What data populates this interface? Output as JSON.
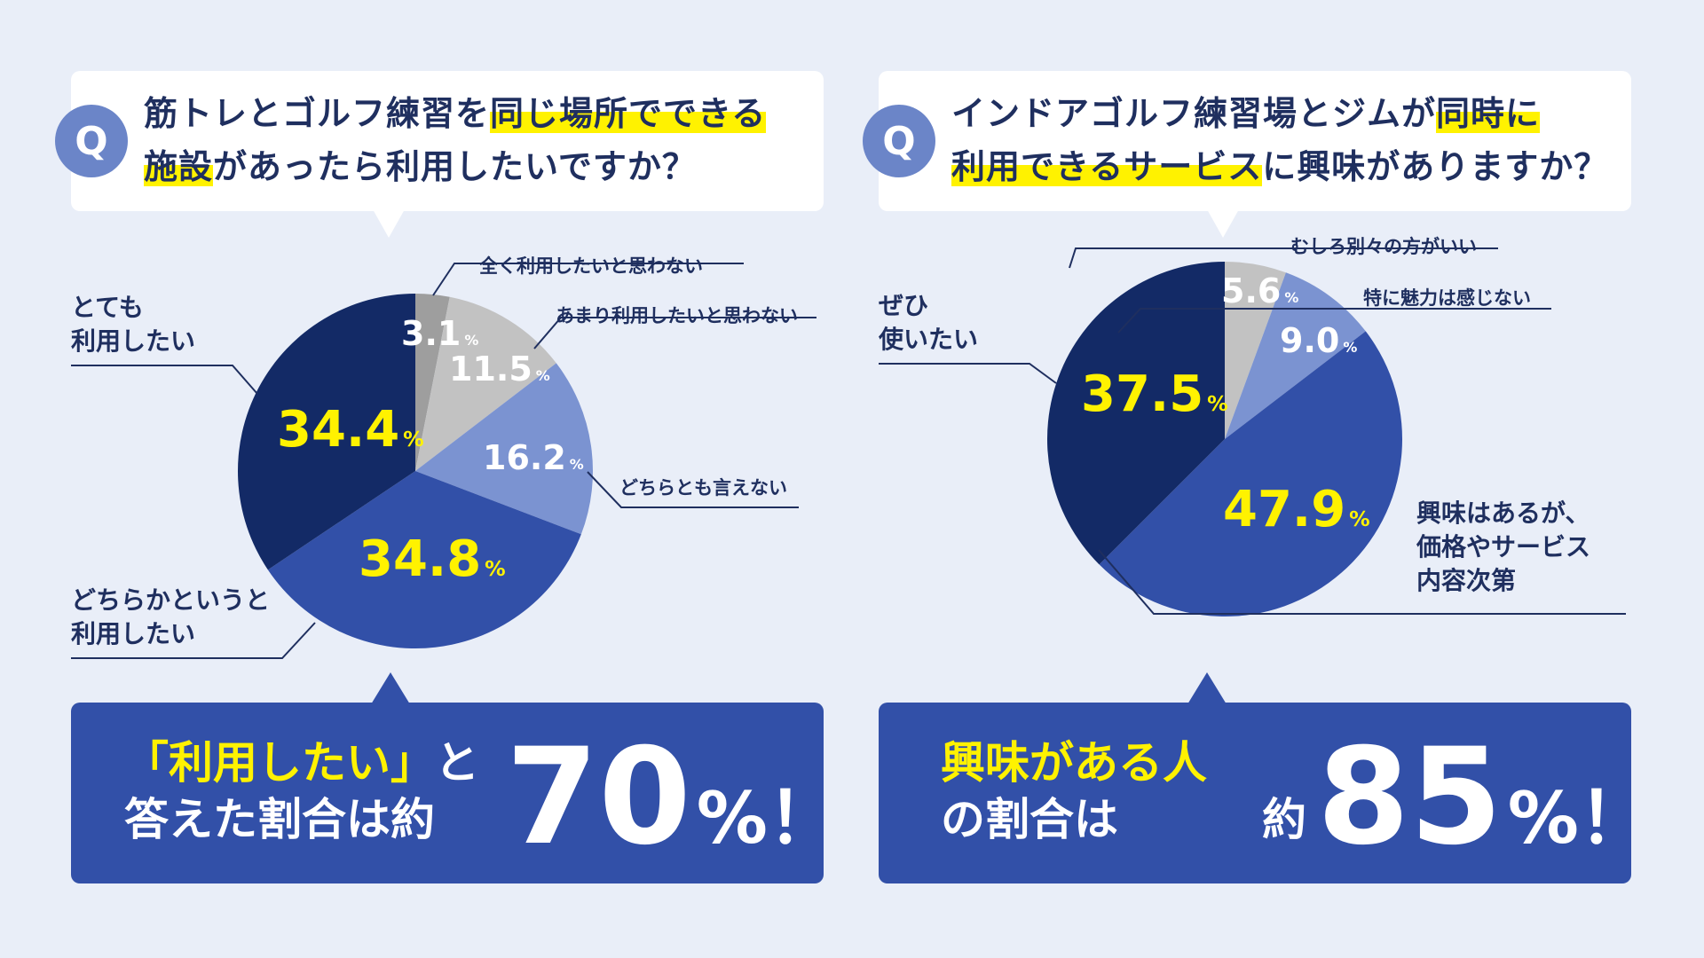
{
  "left": {
    "q_badge": "Q",
    "question": {
      "line1_pre": "筋トレとゴルフ練習を",
      "line1_hl": "同じ場所でできる",
      "line2_hl": "施設",
      "line2_post": "があったら利用したいですか？"
    },
    "answer": {
      "line1_yellow": "「利用したい」",
      "line1_white": "と",
      "line2": "答えた割合は約",
      "big_number": "70",
      "big_unit": "%！"
    }
  },
  "right": {
    "q_badge": "Q",
    "question": {
      "line1_pre": "インドアゴルフ練習場とジムが",
      "line1_hl": "同時に",
      "line2_hl": "利用できるサービス",
      "line2_post": "に興味がありますか？"
    },
    "answer": {
      "line1_yellow": "興味がある人",
      "line2": "の割合は",
      "prefix": "約",
      "big_number": "85",
      "big_unit": "%！"
    }
  },
  "colors": {
    "navy": "#132a66",
    "blue": "#3250a8",
    "light_blue": "#7b93d1",
    "gray": "#c2c2c2",
    "dark_gray": "#9e9e9e",
    "yellow": "#fff200",
    "background": "#e9eef8"
  },
  "chart_data": [
    {
      "type": "pie",
      "title": "",
      "unit": "%",
      "slices": [
        {
          "label": "全く利用したいと思わない",
          "value": 3.1,
          "color": "#9e9e9e"
        },
        {
          "label": "あまり利用したいと思わない",
          "value": 11.5,
          "color": "#c2c2c2"
        },
        {
          "label": "どちらとも言えない",
          "value": 16.2,
          "color": "#7b93d1"
        },
        {
          "label": "どちらかというと利用したい",
          "value": 34.8,
          "color": "#3250a8"
        },
        {
          "label": "とても利用したい",
          "value": 34.4,
          "color": "#132a66"
        }
      ],
      "label_lines": {
        "very": [
          "とても",
          "利用したい"
        ],
        "somewhat": [
          "どちらかというと",
          "利用したい"
        ]
      },
      "value_text": {
        "very": "34.4",
        "somewhat": "34.8",
        "neutral": "16.2",
        "rather_not": "11.5",
        "not_at_all": "3.1"
      }
    },
    {
      "type": "pie",
      "title": "",
      "unit": "%",
      "slices": [
        {
          "label": "むしろ別々の方がいい",
          "value": 5.6,
          "color": "#c2c2c2"
        },
        {
          "label": "特に魅力は感じない",
          "value": 9.0,
          "color": "#7b93d1"
        },
        {
          "label": "興味はあるが、価格やサービス内容次第",
          "value": 47.9,
          "color": "#3250a8"
        },
        {
          "label": "ぜひ使いたい",
          "value": 37.5,
          "color": "#132a66"
        }
      ],
      "label_lines": {
        "want": [
          "ぜひ",
          "使いたい"
        ],
        "depends": [
          "興味はあるが、",
          "価格やサービス",
          "内容次第"
        ]
      },
      "value_text": {
        "separate": "5.6",
        "no_appeal": "9.0",
        "depends": "47.9",
        "want": "37.5"
      }
    }
  ]
}
